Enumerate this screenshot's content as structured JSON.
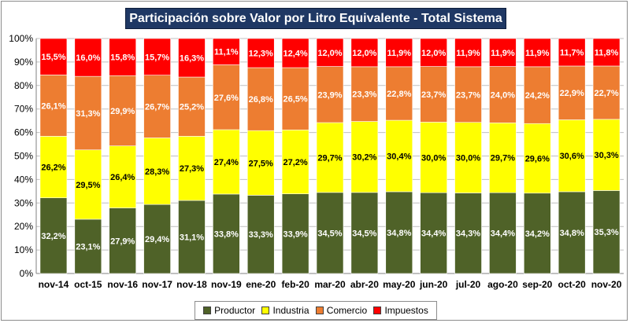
{
  "colors": {
    "Productor": "#4f6228",
    "Industria": "#ffff00",
    "Comercio": "#ed7d31",
    "Impuestos": "#ff0000",
    "title_bg": "#1f3864"
  },
  "chart_data": {
    "type": "bar",
    "stacked": true,
    "title": "Participación sobre Valor por Litro Equivalente - Total Sistema",
    "categories": [
      "nov-14",
      "oct-15",
      "nov-16",
      "nov-17",
      "nov-18",
      "nov-19",
      "ene-20",
      "feb-20",
      "mar-20",
      "abr-20",
      "may-20",
      "jun-20",
      "jul-20",
      "ago-20",
      "sep-20",
      "oct-20",
      "nov-20"
    ],
    "ylim": [
      0,
      100
    ],
    "yticks": [
      "0%",
      "10%",
      "20%",
      "30%",
      "40%",
      "50%",
      "60%",
      "70%",
      "80%",
      "90%",
      "100%"
    ],
    "grid": true,
    "legend_position": "bottom",
    "series": [
      {
        "name": "Productor",
        "values": [
          32.2,
          23.1,
          27.9,
          29.4,
          31.1,
          33.8,
          33.3,
          33.9,
          34.5,
          34.5,
          34.8,
          34.4,
          34.3,
          34.4,
          34.2,
          34.8,
          35.3
        ],
        "labels": [
          "32,2%",
          "23,1%",
          "27,9%",
          "29,4%",
          "31,1%",
          "33,8%",
          "33,3%",
          "33,9%",
          "34,5%",
          "34,5%",
          "34,8%",
          "34,4%",
          "34,3%",
          "34,4%",
          "34,2%",
          "34,8%",
          "35,3%"
        ]
      },
      {
        "name": "Industria",
        "values": [
          26.2,
          29.5,
          26.4,
          28.3,
          27.3,
          27.4,
          27.5,
          27.2,
          29.7,
          30.2,
          30.4,
          30.0,
          30.0,
          29.7,
          29.6,
          30.6,
          30.3
        ],
        "labels": [
          "26,2%",
          "29,5%",
          "26,4%",
          "28,3%",
          "27,3%",
          "27,4%",
          "27,5%",
          "27,2%",
          "29,7%",
          "30,2%",
          "30,4%",
          "30,0%",
          "30,0%",
          "29,7%",
          "29,6%",
          "30,6%",
          "30,3%"
        ]
      },
      {
        "name": "Comercio",
        "values": [
          26.1,
          31.3,
          29.9,
          26.7,
          25.2,
          27.6,
          26.8,
          26.5,
          23.9,
          23.3,
          22.8,
          23.7,
          23.7,
          24.0,
          24.2,
          22.9,
          22.7
        ],
        "labels": [
          "26,1%",
          "31,3%",
          "29,9%",
          "26,7%",
          "25,2%",
          "27,6%",
          "26,8%",
          "26,5%",
          "23,9%",
          "23,3%",
          "22,8%",
          "23,7%",
          "23,7%",
          "24,0%",
          "24,2%",
          "22,9%",
          "22,7%"
        ]
      },
      {
        "name": "Impuestos",
        "values": [
          15.5,
          16.0,
          15.8,
          15.7,
          16.3,
          11.1,
          12.3,
          12.4,
          12.0,
          12.0,
          11.9,
          12.0,
          11.9,
          11.9,
          11.9,
          11.7,
          11.8
        ],
        "labels": [
          "15,5%",
          "16,0%",
          "15,8%",
          "15,7%",
          "16,3%",
          "11,1%",
          "12,3%",
          "12,4%",
          "12,0%",
          "12,0%",
          "11,9%",
          "12,0%",
          "11,9%",
          "11,9%",
          "11,9%",
          "11,7%",
          "11,8%"
        ]
      }
    ]
  }
}
